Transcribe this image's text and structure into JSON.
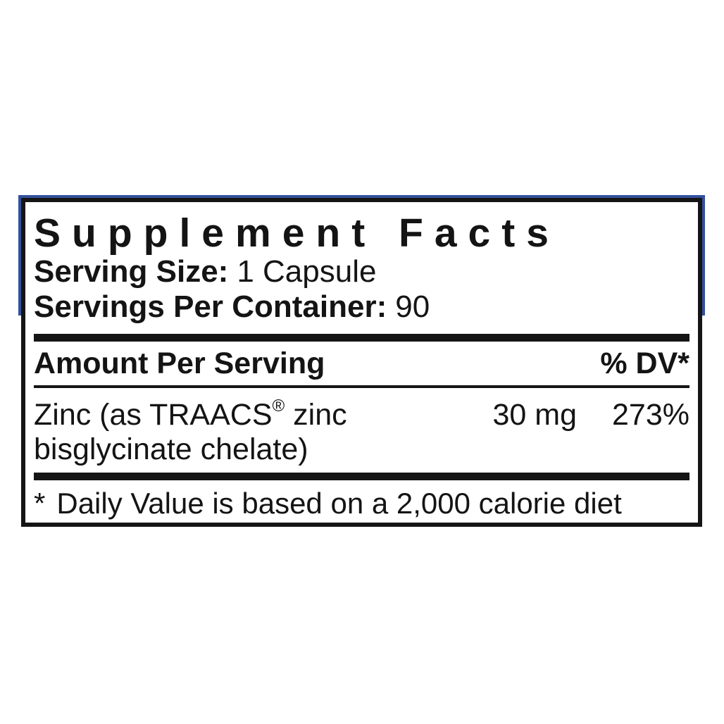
{
  "label": {
    "title": "Supplement Facts",
    "serving_size_label": "Serving Size:",
    "serving_size_value": "1 Capsule",
    "servings_per_container_label": "Servings Per Container:",
    "servings_per_container_value": "90",
    "amount_header": "Amount Per Serving",
    "dv_header": "% DV*",
    "rows": [
      {
        "name_pre": "Zinc (as TRAACS",
        "trademark": "®",
        "name_post": " zinc bisglycinate chelate)",
        "amount": "30 mg",
        "daily_value": "273%"
      }
    ],
    "footnote_marker": "*",
    "footnote_text": "Daily Value is based on a 2,000 calorie diet"
  },
  "colors": {
    "panel_border": "#151515",
    "accent_blue": "#34519e",
    "background": "#ffffff",
    "text": "#141414"
  }
}
